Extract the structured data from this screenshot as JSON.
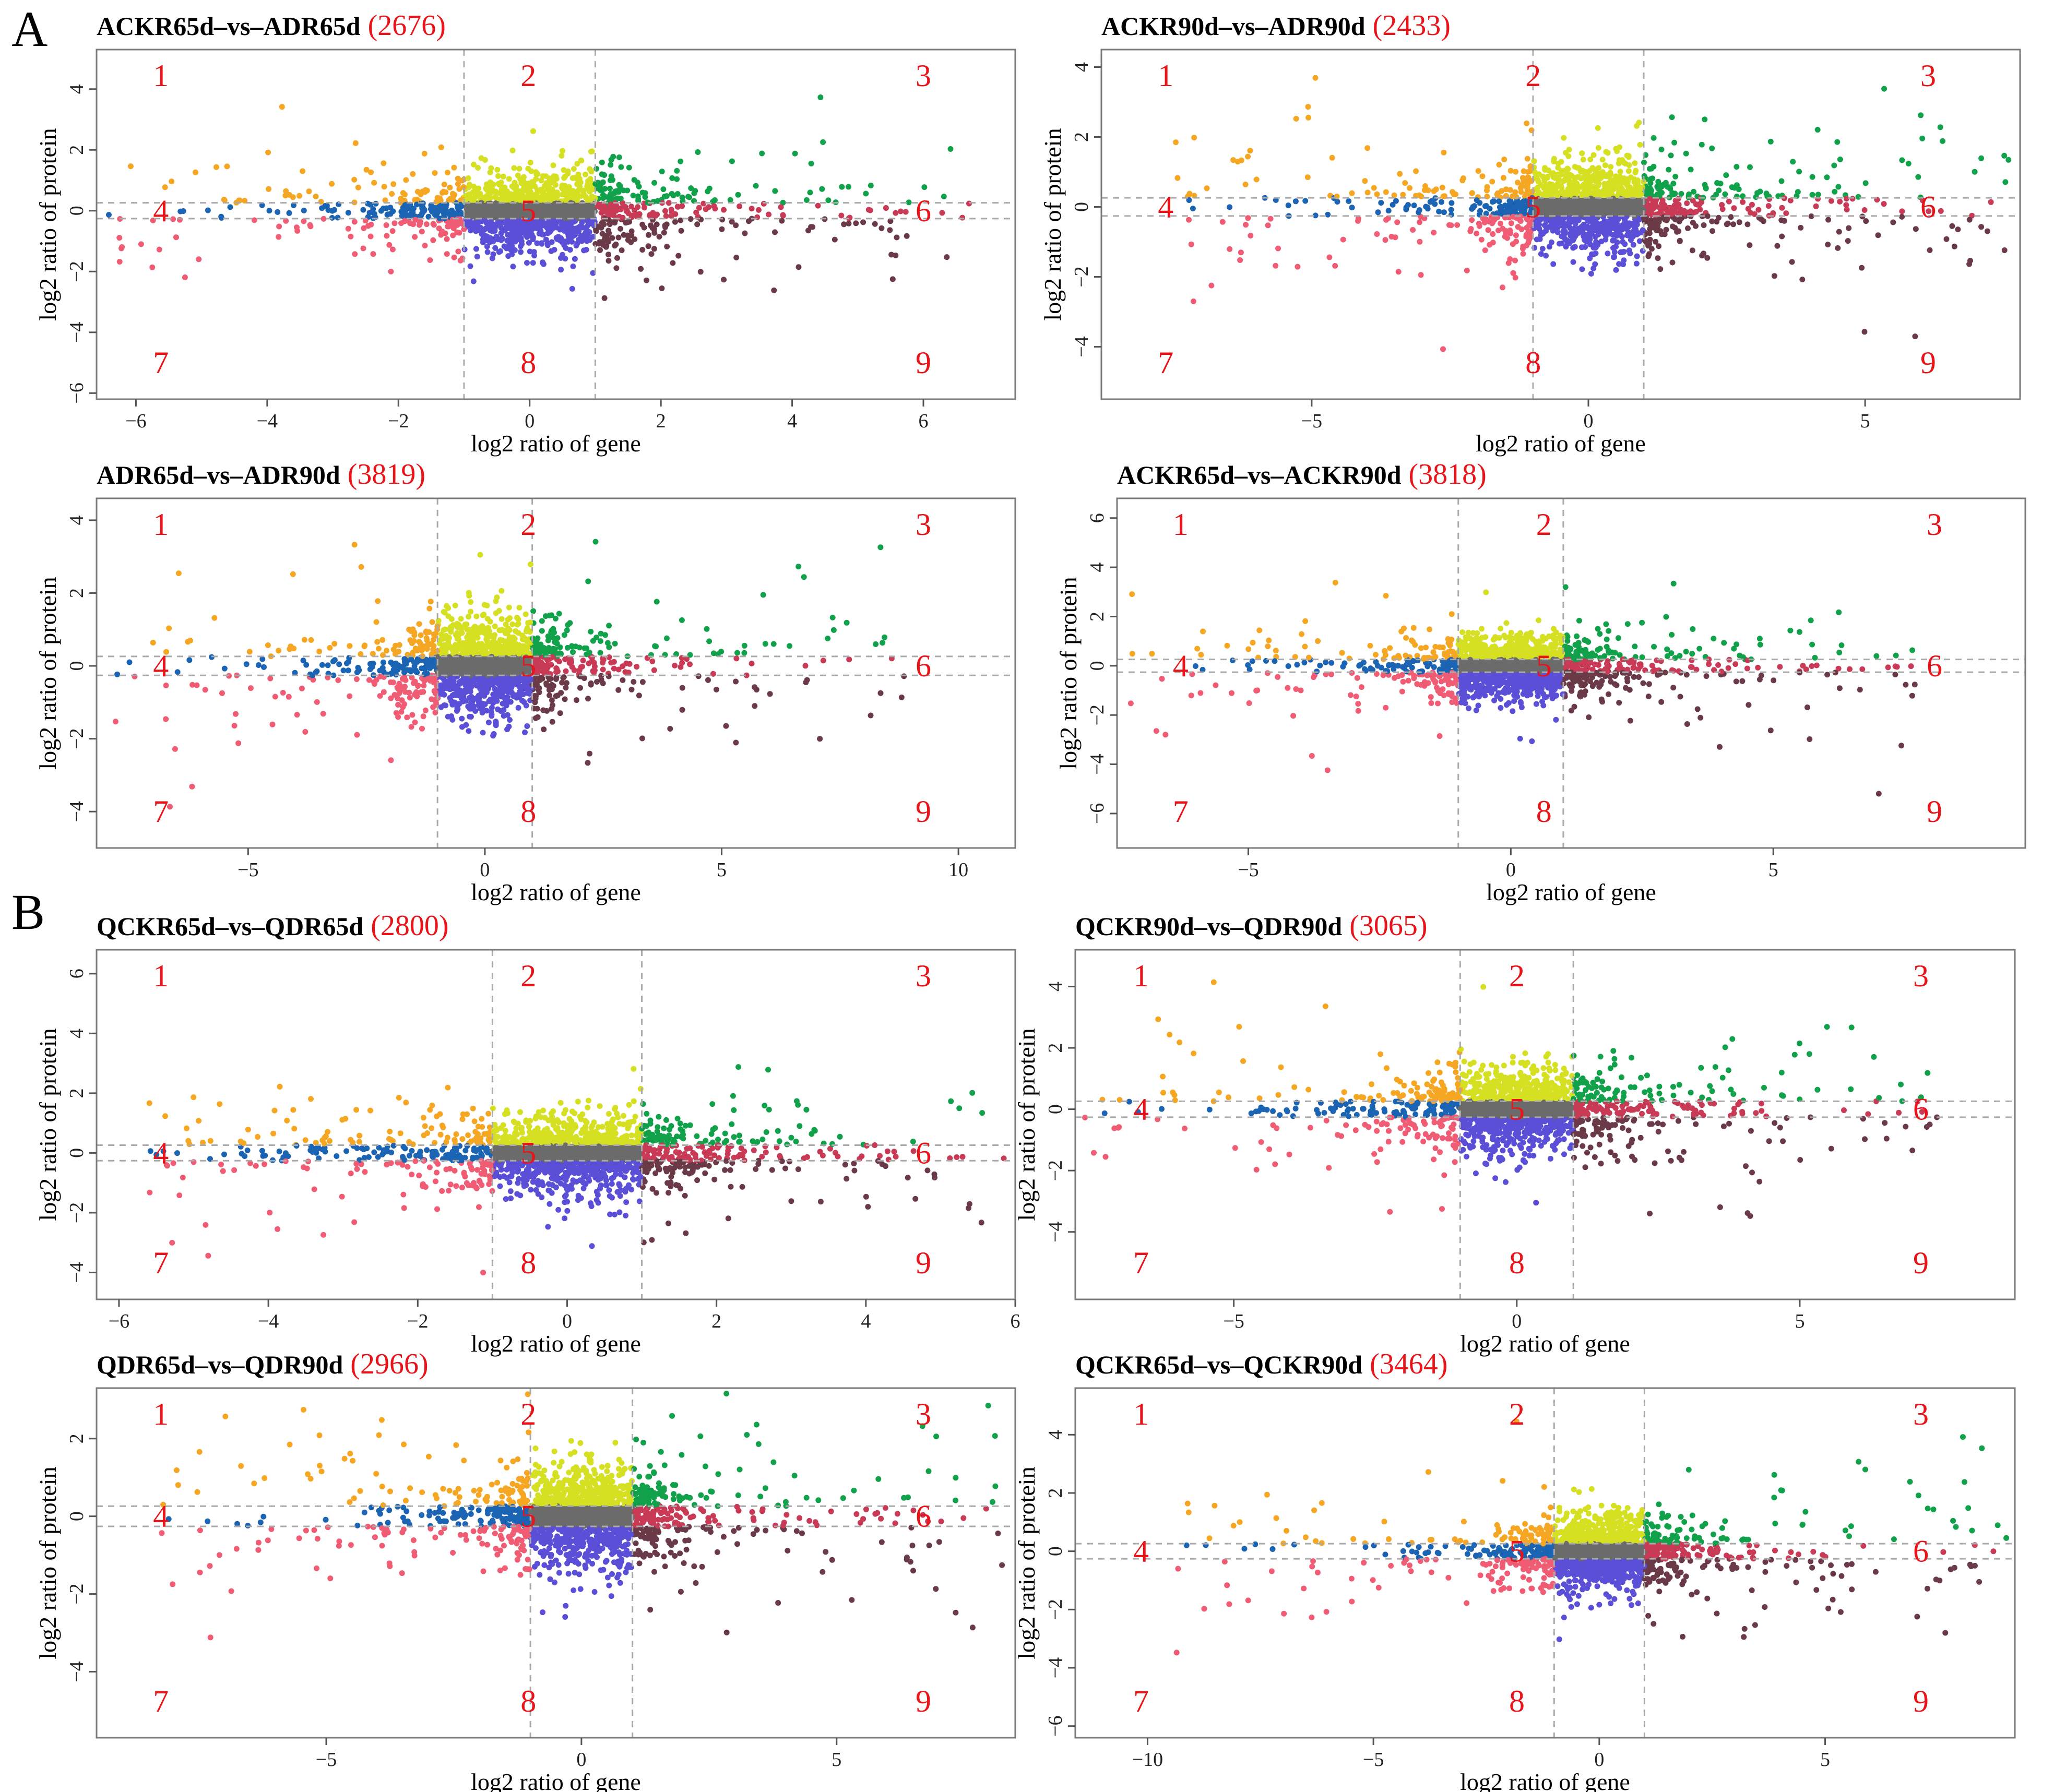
{
  "figure": {
    "panel_labels": [
      "A",
      "B"
    ],
    "region_numbers": [
      "1",
      "2",
      "3",
      "4",
      "5",
      "6",
      "7",
      "8",
      "9"
    ]
  },
  "colors": {
    "region1": "#f5a623",
    "region2": "#d4e021",
    "region3": "#12a14b",
    "region4": "#1b63b3",
    "region5": "#6b6b6b",
    "region6": "#c83a55",
    "region7": "#ef5c74",
    "region8": "#5a4fd6",
    "region9": "#6b3a48",
    "count": "#e8141a"
  },
  "chart_data": [
    {
      "type": "scatter",
      "title": "ACKR65d–vs–ADR65d",
      "count": "(2676)",
      "xlabel": "log2 ratio of gene",
      "ylabel": "log2 ratio of protein",
      "xlim": [
        -6.6,
        7.4
      ],
      "ylim": [
        -6.2,
        5.3
      ],
      "xticks": [
        -6,
        -4,
        -2,
        0,
        2,
        4,
        6
      ],
      "yticks": [
        -6,
        -4,
        -2,
        0,
        2,
        4
      ],
      "gene_threshold": [
        -1,
        1
      ],
      "protein_threshold": [
        -0.26,
        0.26
      ],
      "seed": 11
    },
    {
      "type": "scatter",
      "title": "ACKR90d–vs–ADR90d",
      "count": "(2433)",
      "xlabel": "log2 ratio of gene",
      "ylabel": "log2 ratio of protein",
      "xlim": [
        -8.8,
        7.8
      ],
      "ylim": [
        -5.5,
        4.5
      ],
      "xticks": [
        -5,
        0,
        5
      ],
      "yticks": [
        -4,
        -2,
        0,
        2,
        4
      ],
      "gene_threshold": [
        -1,
        1
      ],
      "protein_threshold": [
        -0.26,
        0.26
      ],
      "seed": 23
    },
    {
      "type": "scatter",
      "title": "ADR65d–vs–ADR90d",
      "count": "(3819)",
      "xlabel": "log2 ratio of gene",
      "ylabel": "log2 ratio of protein",
      "xlim": [
        -8.2,
        11.2
      ],
      "ylim": [
        -5.0,
        4.6
      ],
      "xticks": [
        -5,
        0,
        5,
        10
      ],
      "yticks": [
        -4,
        -2,
        0,
        2,
        4
      ],
      "gene_threshold": [
        -1,
        1
      ],
      "protein_threshold": [
        -0.26,
        0.26
      ],
      "seed": 37
    },
    {
      "type": "scatter",
      "title": "ACKR65d–vs–ACKR90d",
      "count": "(3818)",
      "xlabel": "log2 ratio of gene",
      "ylabel": "log2 ratio of protein",
      "xlim": [
        -7.5,
        9.8
      ],
      "ylim": [
        -7.4,
        6.8
      ],
      "xticks": [
        -5,
        0,
        5
      ],
      "yticks": [
        -6,
        -4,
        -2,
        0,
        2,
        4,
        6
      ],
      "gene_threshold": [
        -1,
        1
      ],
      "protein_threshold": [
        -0.26,
        0.26
      ],
      "seed": 41
    },
    {
      "type": "scatter",
      "title": "QCKR65d–vs–QDR65d",
      "count": "(2800)",
      "xlabel": "log2 ratio of gene",
      "ylabel": "log2 ratio of protein",
      "xlim": [
        -6.3,
        6.0
      ],
      "ylim": [
        -4.9,
        6.8
      ],
      "xticks": [
        -6,
        -4,
        -2,
        0,
        2,
        4,
        6
      ],
      "yticks": [
        -4,
        -2,
        0,
        2,
        4,
        6
      ],
      "gene_threshold": [
        -1,
        1
      ],
      "protein_threshold": [
        -0.26,
        0.26
      ],
      "seed": 53
    },
    {
      "type": "scatter",
      "title": "QCKR90d–vs–QDR90d",
      "count": "(3065)",
      "xlabel": "log2 ratio of gene",
      "ylabel": "log2 ratio of protein",
      "xlim": [
        -7.8,
        8.8
      ],
      "ylim": [
        -6.2,
        5.2
      ],
      "xticks": [
        -5,
        0,
        5
      ],
      "yticks": [
        -4,
        -2,
        0,
        2,
        4
      ],
      "gene_threshold": [
        -1,
        1
      ],
      "protein_threshold": [
        -0.26,
        0.26
      ],
      "seed": 67
    },
    {
      "type": "scatter",
      "title": "QDR65d–vs–QDR90d",
      "count": "(2966)",
      "xlabel": "log2 ratio of gene",
      "ylabel": "log2 ratio of protein",
      "xlim": [
        -9.5,
        8.5
      ],
      "ylim": [
        -5.7,
        3.3
      ],
      "xticks": [
        -5,
        0,
        5
      ],
      "yticks": [
        -4,
        -2,
        0,
        2
      ],
      "gene_threshold": [
        -1,
        1
      ],
      "protein_threshold": [
        -0.26,
        0.26
      ],
      "seed": 79
    },
    {
      "type": "scatter",
      "title": "QCKR65d–vs–QCKR90d",
      "count": "(3464)",
      "xlabel": "log2 ratio of gene",
      "ylabel": "log2 ratio of protein",
      "xlim": [
        -11.6,
        9.2
      ],
      "ylim": [
        -6.4,
        5.6
      ],
      "xticks": [
        -10,
        -5,
        0,
        5
      ],
      "yticks": [
        -6,
        -4,
        -2,
        0,
        2,
        4
      ],
      "gene_threshold": [
        -1,
        1
      ],
      "protein_threshold": [
        -0.26,
        0.26
      ],
      "seed": 83
    }
  ]
}
